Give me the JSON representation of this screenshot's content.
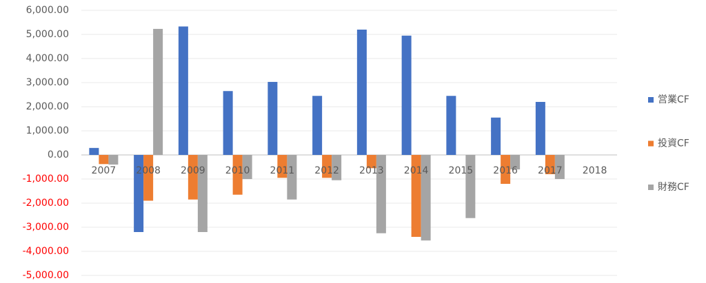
{
  "chart_data": {
    "type": "bar",
    "categories": [
      "2007",
      "2008",
      "2009",
      "2010",
      "2011",
      "2012",
      "2013",
      "2014",
      "2015",
      "2016",
      "2017",
      "2018"
    ],
    "series": [
      {
        "name": "営業CF",
        "color": "#4472c4",
        "values": [
          290,
          -3200,
          5330,
          2650,
          3030,
          2450,
          5200,
          4950,
          2450,
          1550,
          2200,
          null
        ]
      },
      {
        "name": "投資CF",
        "color": "#ed7d31",
        "values": [
          -380,
          -1900,
          -1850,
          -1650,
          -950,
          -950,
          -550,
          -3400,
          0,
          -1200,
          -800,
          null
        ]
      },
      {
        "name": "財務CF",
        "color": "#a5a5a5",
        "values": [
          -400,
          5230,
          -3200,
          -1000,
          -1850,
          -1050,
          -3250,
          -3550,
          -2620,
          -600,
          -1000,
          null
        ]
      }
    ],
    "ylim": [
      -5000,
      6000
    ],
    "yticks": [
      {
        "value": 6000,
        "label": "6,000.00"
      },
      {
        "value": 5000,
        "label": "5,000.00"
      },
      {
        "value": 4000,
        "label": "4,000.00"
      },
      {
        "value": 3000,
        "label": "3,000.00"
      },
      {
        "value": 2000,
        "label": "2,000.00"
      },
      {
        "value": 1000,
        "label": "1,000.00"
      },
      {
        "value": 0,
        "label": "0.00"
      },
      {
        "value": -1000,
        "label": "-1,000.00"
      },
      {
        "value": -2000,
        "label": "-2,000.00"
      },
      {
        "value": -3000,
        "label": "-3,000.00"
      },
      {
        "value": -4000,
        "label": "-4,000.00"
      },
      {
        "value": -5000,
        "label": "-5,000.00"
      }
    ],
    "negative_tick_color": "#ff0000",
    "grid": true,
    "legend": "right"
  }
}
